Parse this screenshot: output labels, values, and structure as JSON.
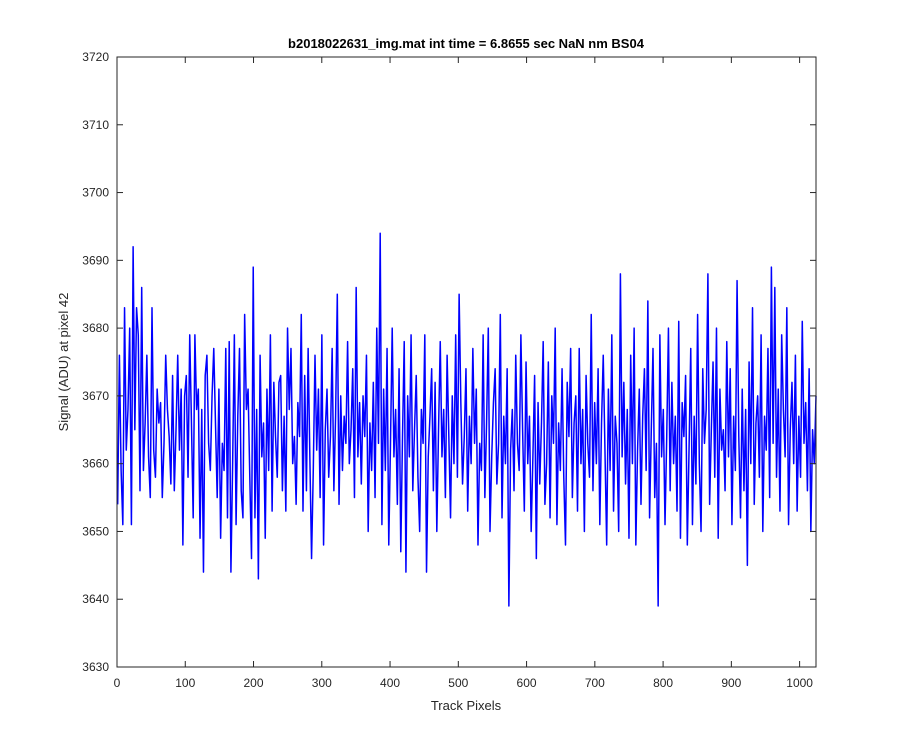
{
  "chart_data": {
    "type": "line",
    "title": "b2018022631_img.mat int time = 6.8655 sec  NaN nm BS04",
    "xlabel": "Track Pixels",
    "ylabel": "Signal (ADU) at pixel 42",
    "xlim": [
      0,
      1024
    ],
    "ylim": [
      3630,
      3720
    ],
    "x_ticks": [
      0,
      100,
      200,
      300,
      400,
      500,
      600,
      700,
      800,
      900,
      1000
    ],
    "y_ticks": [
      3630,
      3640,
      3650,
      3660,
      3670,
      3680,
      3690,
      3700,
      3710,
      3720
    ],
    "x_tick_labels": [
      "0",
      "100",
      "200",
      "300",
      "400",
      "500",
      "600",
      "700",
      "800",
      "900",
      "1000"
    ],
    "y_tick_labels": [
      "3630",
      "3640",
      "3650",
      "3660",
      "3670",
      "3680",
      "3690",
      "3700",
      "3710",
      "3720"
    ],
    "grid": false,
    "line_color": "#0000ff",
    "series": [
      {
        "name": "",
        "x_start": 1,
        "x_step": 1,
        "values": [
          3654,
          3676,
          3659,
          3651,
          3683,
          3662,
          3668,
          3680,
          3651,
          3692,
          3665,
          3683,
          3679,
          3656,
          3686,
          3659,
          3666,
          3676,
          3661,
          3655,
          3683,
          3662,
          3658,
          3671,
          3666,
          3669,
          3655,
          3663,
          3676,
          3668,
          3664,
          3657,
          3673,
          3656,
          3665,
          3676,
          3662,
          3671,
          3648,
          3670,
          3673,
          3658,
          3679,
          3666,
          3652,
          3679,
          3668,
          3671,
          3649,
          3668,
          3644,
          3673,
          3676,
          3663,
          3659,
          3670,
          3677,
          3666,
          3655,
          3671,
          3649,
          3663,
          3659,
          3677,
          3652,
          3678,
          3644,
          3660,
          3679,
          3651,
          3667,
          3677,
          3656,
          3652,
          3682,
          3668,
          3671,
          3658,
          3646,
          3689,
          3652,
          3668,
          3643,
          3676,
          3661,
          3666,
          3649,
          3671,
          3659,
          3679,
          3653,
          3672,
          3664,
          3658,
          3672,
          3673,
          3656,
          3667,
          3653,
          3680,
          3668,
          3677,
          3660,
          3664,
          3654,
          3669,
          3664,
          3682,
          3653,
          3673,
          3656,
          3677,
          3661,
          3646,
          3659,
          3676,
          3662,
          3671,
          3655,
          3679,
          3648,
          3665,
          3671,
          3658,
          3664,
          3677,
          3656,
          3667,
          3685,
          3654,
          3670,
          3659,
          3667,
          3663,
          3678,
          3660,
          3665,
          3674,
          3655,
          3686,
          3661,
          3669,
          3657,
          3670,
          3664,
          3676,
          3650,
          3666,
          3659,
          3672,
          3655,
          3680,
          3663,
          3694,
          3651,
          3671,
          3659,
          3677,
          3648,
          3663,
          3680,
          3661,
          3668,
          3654,
          3674,
          3647,
          3664,
          3678,
          3644,
          3670,
          3661,
          3679,
          3656,
          3665,
          3673,
          3658,
          3650,
          3668,
          3663,
          3679,
          3644,
          3661,
          3667,
          3674,
          3656,
          3672,
          3650,
          3665,
          3678,
          3661,
          3668,
          3655,
          3676,
          3664,
          3652,
          3670,
          3660,
          3679,
          3658,
          3685,
          3669,
          3657,
          3664,
          3674,
          3653,
          3667,
          3660,
          3677,
          3663,
          3671,
          3648,
          3663,
          3659,
          3679,
          3655,
          3666,
          3680,
          3650,
          3661,
          3669,
          3674,
          3657,
          3663,
          3682,
          3652,
          3667,
          3660,
          3674,
          3639,
          3662,
          3668,
          3656,
          3676,
          3663,
          3659,
          3679,
          3665,
          3653,
          3675,
          3660,
          3667,
          3650,
          3661,
          3673,
          3646,
          3669,
          3657,
          3666,
          3678,
          3654,
          3660,
          3675,
          3652,
          3670,
          3663,
          3680,
          3651,
          3666,
          3659,
          3674,
          3658,
          3648,
          3672,
          3664,
          3677,
          3655,
          3666,
          3670,
          3653,
          3677,
          3660,
          3668,
          3650,
          3673,
          3663,
          3658,
          3682,
          3656,
          3669,
          3660,
          3674,
          3651,
          3666,
          3676,
          3662,
          3648,
          3671,
          3659,
          3679,
          3653,
          3667,
          3663,
          3650,
          3688,
          3661,
          3672,
          3657,
          3668,
          3649,
          3676,
          3660,
          3680,
          3648,
          3662,
          3671,
          3654,
          3667,
          3674,
          3659,
          3684,
          3652,
          3665,
          3677,
          3655,
          3663,
          3639,
          3679,
          3661,
          3668,
          3651,
          3664,
          3680,
          3656,
          3672,
          3660,
          3667,
          3653,
          3681,
          3649,
          3669,
          3664,
          3673,
          3648,
          3662,
          3677,
          3651,
          3667,
          3657,
          3682,
          3660,
          3650,
          3674,
          3663,
          3668,
          3688,
          3654,
          3665,
          3675,
          3658,
          3680,
          3649,
          3671,
          3662,
          3665,
          3656,
          3678,
          3661,
          3674,
          3651,
          3667,
          3659,
          3687,
          3664,
          3652,
          3671,
          3656,
          3668,
          3645,
          3675,
          3660,
          3683,
          3654,
          3666,
          3670,
          3658,
          3679,
          3650,
          3667,
          3662,
          3677,
          3655,
          3689,
          3663,
          3686,
          3658,
          3671,
          3653,
          3679,
          3668,
          3661,
          3683,
          3651,
          3665,
          3672,
          3660,
          3676,
          3653,
          3667,
          3658,
          3681,
          3663,
          3669,
          3656,
          3674,
          3650,
          3665,
          3660,
          3670
        ]
      }
    ]
  }
}
